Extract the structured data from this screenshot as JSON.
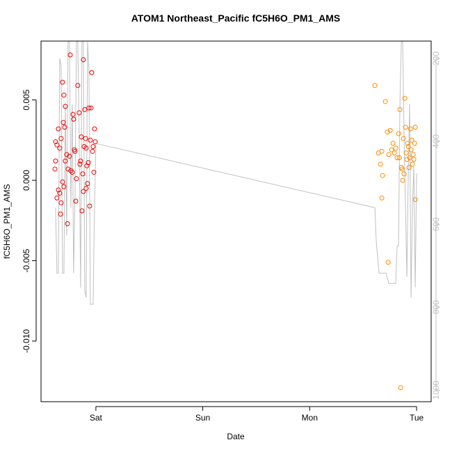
{
  "chart_data": {
    "type": "scatter",
    "title": "ATOM1 Northeast_Pacific fC5H6O_PM1_AMS",
    "x_label": "Date",
    "y_label": "fC5H6O_PM1_AMS",
    "xlim": [
      0.487,
      4.136
    ],
    "xticks": [
      {
        "value": 1,
        "label": "Sat"
      },
      {
        "value": 2,
        "label": "Sun"
      },
      {
        "value": 3,
        "label": "Mon"
      },
      {
        "value": 4,
        "label": "Tue"
      }
    ],
    "ylim": [
      -0.01377,
      0.00866
    ],
    "yticks": [
      {
        "value": -0.01,
        "label": "-0.010"
      },
      {
        "value": -0.005,
        "label": "-0.005"
      },
      {
        "value": 0,
        "label": "0.000"
      },
      0.005
    ],
    "y2lim": [
      1028,
      158
    ],
    "y2ticks": [
      200,
      400,
      600,
      800,
      1000
    ],
    "y2_color": "#c0c0c0",
    "series": [
      {
        "type": "scatter",
        "color": "#ee0000",
        "x": [
          0.623,
          0.636,
          0.649,
          0.662,
          0.675,
          0.688,
          0.701,
          0.714,
          0.695,
          0.708,
          0.623,
          0.617,
          0.636,
          0.649,
          0.662,
          0.675,
          0.669,
          0.688,
          0.701,
          0.714,
          0.727,
          0.734,
          0.74,
          0.753,
          0.76,
          0.766,
          0.779,
          0.786,
          0.792,
          0.799,
          0.805,
          0.812,
          0.818,
          0.831,
          0.844,
          0.851,
          0.857,
          0.864,
          0.87,
          0.877,
          0.883,
          0.89,
          0.896,
          0.903,
          0.909,
          0.916,
          0.922,
          0.929,
          0.935,
          0.942,
          0.948,
          0.955,
          0.961,
          0.968,
          0.974,
          0.981,
          0.987,
          0.994,
          0.909,
          0.883
        ],
        "values": [
          0.0024,
          0.0022,
          0.0032,
          0.002,
          0.0026,
          0.0061,
          0.0053,
          0.0046,
          0.0036,
          0.0033,
          0.0012,
          0.0007,
          -0.0011,
          -0.0006,
          -0.0008,
          -0.0014,
          -0.0021,
          -0.0001,
          -0.0004,
          0.0012,
          0.0016,
          -0.0027,
          0.0007,
          0.0015,
          0.0078,
          0.0006,
          0.0005,
          0.0041,
          0.0038,
          0.0019,
          0.0018,
          -0.0013,
          0.0001,
          0.0059,
          0.0042,
          0.001,
          0.0012,
          0.0027,
          -0.0019,
          0.0004,
          0.0075,
          0.0021,
          0.0044,
          0.0026,
          0.002,
          0.0009,
          -0.0002,
          0.0011,
          0.0045,
          -0.0016,
          0.0025,
          0.0045,
          0.0067,
          0.0018,
          0.0021,
          0.0005,
          0.0032,
          0.0024,
          -0.0005,
          -0.0007
        ]
      },
      {
        "type": "scatter",
        "color": "#ff8c00",
        "x": [
          3.61,
          3.708,
          3.727,
          3.675,
          3.662,
          3.682,
          3.675,
          3.734,
          3.753,
          3.766,
          3.779,
          3.792,
          3.805,
          3.818,
          3.831,
          3.844,
          3.851,
          3.857,
          3.87,
          3.877,
          3.883,
          3.89,
          3.896,
          3.903,
          3.909,
          3.916,
          3.922,
          3.929,
          3.935,
          3.942,
          3.948,
          3.955,
          3.961,
          3.968,
          3.974,
          3.981,
          3.987,
          3.987,
          3.838,
          3.864,
          3.74,
          3.643
        ],
        "values": [
          0.0059,
          0.0049,
          0.003,
          0.0018,
          0.001,
          0.0003,
          -0.0011,
          -0.0051,
          0.0031,
          0.0019,
          0.0023,
          0.0017,
          0.002,
          0.0014,
          0.0029,
          0.0044,
          -0.0129,
          0.0008,
          0,
          0.0026,
          0.0004,
          0.0051,
          0.0033,
          0.0017,
          0.0013,
          0.0023,
          0.0021,
          0.0008,
          0.0014,
          0.0032,
          0.0019,
          0.0025,
          0.001,
          0.0016,
          0.0013,
          0.0023,
          0.0033,
          -0.0012,
          0.0014,
          0.0007,
          0.0016,
          0.0017
        ]
      },
      {
        "type": "line",
        "axis": "y2",
        "color": "#c0c0c0",
        "x": [
          0.623,
          0.636,
          0.649,
          0.662,
          0.675,
          0.688,
          0.701,
          0.714,
          0.727,
          0.74,
          0.753,
          0.766,
          0.779,
          0.792,
          0.805,
          0.818,
          0.831,
          0.844,
          0.857,
          0.87,
          0.883,
          0.896,
          0.909,
          0.922,
          0.935,
          0.948,
          0.961,
          0.974,
          0.987,
          1.0,
          3.61,
          3.623,
          3.649,
          3.662,
          3.714,
          3.74,
          3.805,
          3.818,
          3.831,
          3.844,
          3.857,
          3.87,
          3.883,
          3.896,
          3.909,
          3.922,
          3.935,
          3.948,
          3.961,
          3.974,
          3.987,
          4.0
        ],
        "values": [
          560,
          718,
          718,
          200,
          218,
          718,
          718,
          310,
          627,
          160,
          160,
          560,
          310,
          718,
          527,
          160,
          160,
          393,
          753,
          160,
          160,
          760,
          777,
          160,
          227,
          793,
          793,
          793,
          560,
          405,
          560,
          643,
          718,
          718,
          718,
          743,
          743,
          652,
          652,
          310,
          160,
          160,
          393,
          560,
          727,
          477,
          310,
          777,
          560,
          460,
          752,
          477
        ]
      }
    ]
  }
}
